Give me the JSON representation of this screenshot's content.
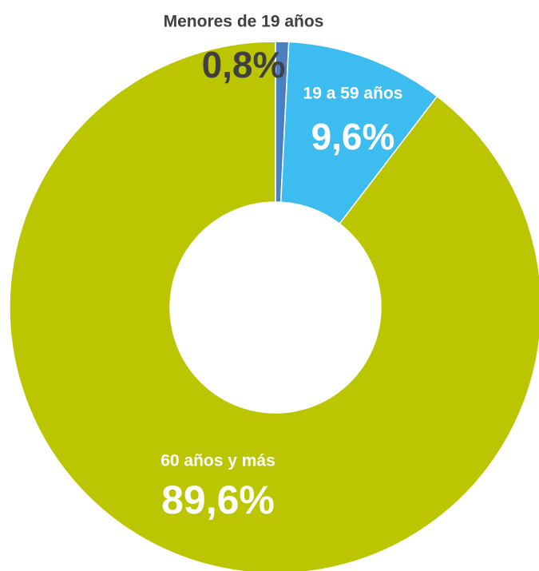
{
  "chart_data": {
    "type": "donut",
    "categories": [
      "Menores de 19 años",
      "19 a 59 años",
      "60 años y más"
    ],
    "values": [
      0.8,
      9.6,
      89.6
    ],
    "value_labels": [
      "0,8%",
      "9,6%",
      "89,6%"
    ],
    "colors": [
      "#4a7fc0",
      "#3dbcef",
      "#bcc600"
    ]
  }
}
